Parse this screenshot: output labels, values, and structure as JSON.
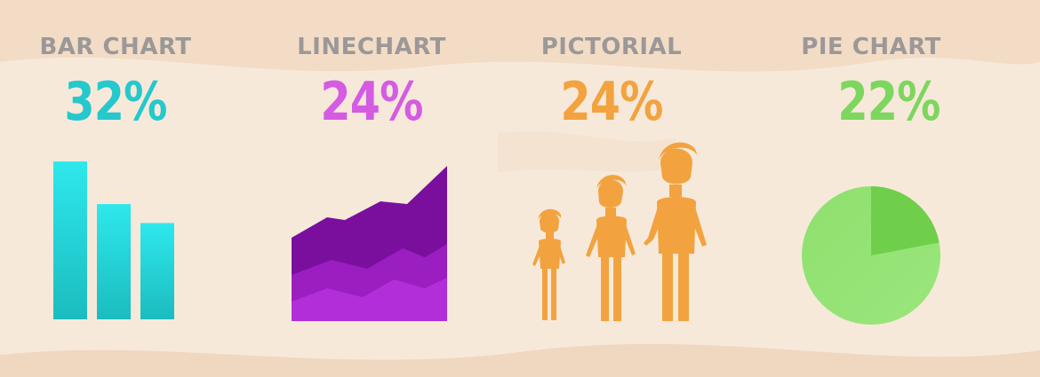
{
  "infographic": {
    "panels": [
      {
        "label": "BAR CHART",
        "percent": "32%",
        "color": "#25c8cc",
        "icon": "bar-chart-icon"
      },
      {
        "label": "LINECHART",
        "percent": "24%",
        "color": "#d55be3",
        "icon": "area-chart-icon"
      },
      {
        "label": "PICTORIAL",
        "percent": "24%",
        "color": "#f2a33f",
        "icon": "people-icon"
      },
      {
        "label": "PIE CHART",
        "percent": "22%",
        "color": "#7dd65e",
        "icon": "pie-chart-icon"
      }
    ]
  },
  "chart_data": {
    "type": "bar",
    "categories": [
      "BAR CHART",
      "LINECHART",
      "PICTORIAL",
      "PIE CHART"
    ],
    "values": [
      32,
      24,
      24,
      22
    ],
    "unit": "%",
    "colors": [
      "#25c8cc",
      "#d55be3",
      "#f2a33f",
      "#7dd65e"
    ]
  },
  "icons": {
    "bar_chart": {
      "bars": [
        1.0,
        0.73,
        0.61
      ],
      "color_top": "#2ee8ec",
      "color_bottom": "#1bbcbf"
    },
    "area_chart": {
      "layers": [
        "#7a0f9e",
        "#9a1ec0",
        "#b12ed8"
      ]
    },
    "people": {
      "count": 3,
      "color": "#f2a33f"
    },
    "pie_chart": {
      "highlight_fraction": 0.22,
      "base_color": "#8fe06e",
      "slice_color": "#6fcf4b"
    }
  }
}
